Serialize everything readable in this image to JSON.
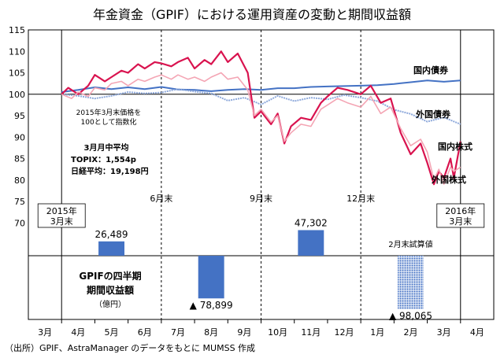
{
  "chart_data": {
    "type": "line",
    "title": "年金資金（GPIF）における運用資産の変動と期間収益額",
    "ylim": [
      65,
      115
    ],
    "y_ticks": [
      70,
      75,
      80,
      85,
      90,
      95,
      100,
      105,
      110,
      115
    ],
    "x_month_labels": [
      "3月",
      "4月",
      "5月",
      "6月",
      "7月",
      "8月",
      "9月",
      "10月",
      "11月",
      "12月",
      "1月",
      "2月",
      "3月",
      "4月"
    ],
    "quarter_labels": [
      "6月末",
      "9月末",
      "12月末"
    ],
    "start_label": "2015年\n3月末",
    "end_label": "2016年\n3月末",
    "note_index": "2015年3月末価格を\n100として指数化",
    "note_avg": {
      "heading": "3月月中平均",
      "topix": "TOPIX：1,554p",
      "nikkei": "日経平均：19,198円"
    },
    "series": [
      {
        "name": "国内債券",
        "color": "#4472c4",
        "points": [
          [
            0,
            100.5
          ],
          [
            0.5,
            101
          ],
          [
            1,
            101.6
          ],
          [
            1.5,
            101.2
          ],
          [
            2,
            101.6
          ],
          [
            2.5,
            101.2
          ],
          [
            3,
            101.7
          ],
          [
            3.5,
            101.1
          ],
          [
            4,
            101
          ],
          [
            4.5,
            100.7
          ],
          [
            5,
            101
          ],
          [
            5.5,
            101.2
          ],
          [
            6,
            101
          ],
          [
            6.5,
            101.4
          ],
          [
            7,
            101.4
          ],
          [
            7.5,
            101.7
          ],
          [
            8,
            101.8
          ],
          [
            8.5,
            101.9
          ],
          [
            9,
            102
          ],
          [
            9.5,
            102.1
          ],
          [
            10,
            102.4
          ],
          [
            10.5,
            102.8
          ],
          [
            11,
            103.2
          ],
          [
            11.5,
            102.9
          ],
          [
            12,
            103.2
          ]
        ]
      },
      {
        "name": "外国債券",
        "color": "#8ea9db",
        "points": [
          [
            0,
            100
          ],
          [
            0.5,
            99.6
          ],
          [
            1,
            99
          ],
          [
            1.5,
            99.6
          ],
          [
            2,
            100.5
          ],
          [
            2.5,
            100.2
          ],
          [
            3,
            100.4
          ],
          [
            3.5,
            101.2
          ],
          [
            4,
            100.6
          ],
          [
            4.5,
            100.2
          ],
          [
            5,
            98.5
          ],
          [
            5.5,
            99.2
          ],
          [
            6,
            97.6
          ],
          [
            6.5,
            99.6
          ],
          [
            7,
            98.4
          ],
          [
            7.5,
            99.2
          ],
          [
            8,
            98.8
          ],
          [
            8.5,
            99.8
          ],
          [
            9,
            99.2
          ],
          [
            9.5,
            98.4
          ],
          [
            10,
            96.4
          ],
          [
            10.5,
            95.4
          ],
          [
            11,
            93.6
          ],
          [
            11.5,
            94.6
          ],
          [
            12,
            93
          ]
        ]
      },
      {
        "name": "国内株式",
        "color": "#d9134f",
        "points": [
          [
            0,
            100
          ],
          [
            0.2,
            101.5
          ],
          [
            0.5,
            100
          ],
          [
            0.8,
            102
          ],
          [
            1,
            104.5
          ],
          [
            1.3,
            103
          ],
          [
            1.5,
            104
          ],
          [
            1.8,
            105.5
          ],
          [
            2,
            105
          ],
          [
            2.3,
            107
          ],
          [
            2.5,
            106
          ],
          [
            2.8,
            107.5
          ],
          [
            3,
            107.2
          ],
          [
            3.3,
            106.5
          ],
          [
            3.5,
            107.5
          ],
          [
            3.8,
            108.5
          ],
          [
            4,
            106
          ],
          [
            4.3,
            108
          ],
          [
            4.5,
            107
          ],
          [
            4.8,
            110
          ],
          [
            5,
            107.5
          ],
          [
            5.3,
            109.5
          ],
          [
            5.6,
            105
          ],
          [
            5.8,
            94.5
          ],
          [
            6,
            96
          ],
          [
            6.3,
            93
          ],
          [
            6.5,
            95.5
          ],
          [
            6.7,
            88.5
          ],
          [
            6.9,
            92.5
          ],
          [
            7.2,
            94.5
          ],
          [
            7.5,
            94
          ],
          [
            7.8,
            98
          ],
          [
            8,
            99.5
          ],
          [
            8.3,
            101.5
          ],
          [
            8.6,
            101
          ],
          [
            9,
            100
          ],
          [
            9.3,
            102
          ],
          [
            9.6,
            98
          ],
          [
            9.9,
            99
          ],
          [
            10.2,
            91
          ],
          [
            10.5,
            86
          ],
          [
            10.8,
            88.5
          ],
          [
            11,
            84
          ],
          [
            11.2,
            79
          ],
          [
            11.35,
            82
          ],
          [
            11.5,
            80.5
          ],
          [
            11.7,
            85
          ],
          [
            11.8,
            80.5
          ],
          [
            12,
            89
          ]
        ]
      },
      {
        "name": "外国株式",
        "color": "#f4a5b4",
        "points": [
          [
            0,
            100
          ],
          [
            0.3,
            99
          ],
          [
            0.5,
            100.5
          ],
          [
            0.8,
            99.5
          ],
          [
            1,
            101.5
          ],
          [
            1.3,
            101
          ],
          [
            1.5,
            102.5
          ],
          [
            1.8,
            103
          ],
          [
            2,
            102
          ],
          [
            2.3,
            103.5
          ],
          [
            2.5,
            103
          ],
          [
            2.8,
            104
          ],
          [
            3,
            104.5
          ],
          [
            3.3,
            103.5
          ],
          [
            3.5,
            104.5
          ],
          [
            3.8,
            103.5
          ],
          [
            4,
            104
          ],
          [
            4.3,
            103
          ],
          [
            4.5,
            104
          ],
          [
            4.8,
            105
          ],
          [
            5,
            103.5
          ],
          [
            5.3,
            104
          ],
          [
            5.6,
            101
          ],
          [
            5.8,
            95
          ],
          [
            6,
            96.5
          ],
          [
            6.3,
            93.5
          ],
          [
            6.5,
            95
          ],
          [
            6.7,
            89
          ],
          [
            6.9,
            91
          ],
          [
            7.2,
            93
          ],
          [
            7.5,
            92.5
          ],
          [
            7.8,
            96.5
          ],
          [
            8,
            97.5
          ],
          [
            8.3,
            99
          ],
          [
            8.6,
            98
          ],
          [
            9,
            97
          ],
          [
            9.3,
            99.5
          ],
          [
            9.6,
            95.5
          ],
          [
            9.9,
            97
          ],
          [
            10.2,
            92
          ],
          [
            10.5,
            88
          ],
          [
            10.8,
            89.5
          ],
          [
            11,
            86.5
          ],
          [
            11.2,
            80
          ],
          [
            11.35,
            82.5
          ],
          [
            11.5,
            79
          ],
          [
            11.7,
            83
          ],
          [
            11.8,
            82
          ],
          [
            12,
            83
          ]
        ]
      }
    ],
    "quarterly_returns": {
      "heading": "GPIFの四半期\n期間収益額",
      "unit": "（億円）",
      "preliminary_label": "2月末試算値",
      "bars": [
        {
          "quarter": "Q1",
          "value": 26489,
          "label": "26,489",
          "color": "#4472c4",
          "pattern": false
        },
        {
          "quarter": "Q2",
          "value": -78899,
          "label": "▲ 78,899",
          "color": "#4472c4",
          "pattern": false
        },
        {
          "quarter": "Q3",
          "value": 47302,
          "label": "47,302",
          "color": "#4472c4",
          "pattern": false
        },
        {
          "quarter": "Q4",
          "value": -98065,
          "label": "▲ 98,065",
          "color": "#4472c4",
          "pattern": true
        }
      ]
    },
    "source": "（出所）GPIF、AstraManager のデータをもとに MUMSS 作成"
  }
}
